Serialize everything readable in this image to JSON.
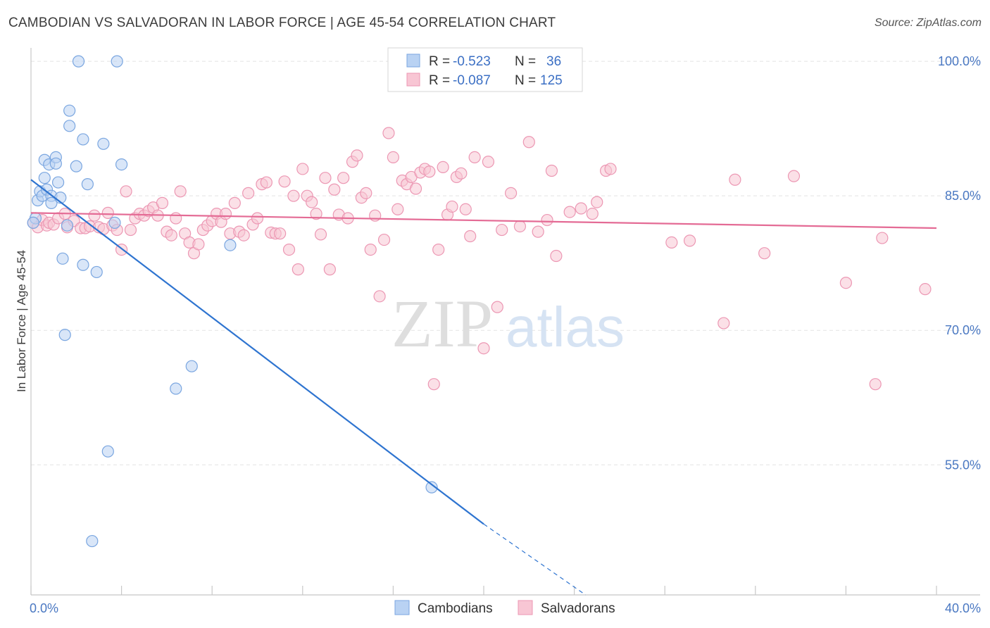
{
  "title": "CAMBODIAN VS SALVADORAN IN LABOR FORCE | AGE 45-54 CORRELATION CHART",
  "source": "Source: ZipAtlas.com",
  "watermark": {
    "zip": "ZIP",
    "atlas": "atlas"
  },
  "colors": {
    "cambodian_fill": "#b9d2f3",
    "cambodian_stroke": "#7aa6e0",
    "cambodian_line": "#2e74d0",
    "salvadoran_fill": "#f8c6d4",
    "salvadoran_stroke": "#ec97b3",
    "salvadoran_line": "#e46b95",
    "grid": "#e3e3e3",
    "axis_text": "#4a78c2"
  },
  "legend": {
    "rows": [
      {
        "r_label": "R =",
        "r_value": "-0.523",
        "n_label": "N =",
        "n_value": "36"
      },
      {
        "r_label": "R =",
        "r_value": "-0.087",
        "n_label": "N =",
        "n_value": "125"
      }
    ]
  },
  "bottom_legend": [
    "Cambodians",
    "Salvadorans"
  ],
  "chart_data": {
    "type": "scatter",
    "ylabel": "In Labor Force | Age 45-54",
    "xlabel": "",
    "xlim": [
      0,
      40
    ],
    "ylim": [
      40.5,
      101.5
    ],
    "x_tick_labels": [
      {
        "value": 0,
        "label": "0.0%"
      },
      {
        "value": 40,
        "label": "40.0%"
      }
    ],
    "y_tick_labels": [
      {
        "value": 100,
        "label": "100.0%"
      },
      {
        "value": 85,
        "label": "85.0%"
      },
      {
        "value": 70,
        "label": "70.0%"
      },
      {
        "value": 55,
        "label": "55.0%"
      }
    ],
    "y_gridlines": [
      100,
      85,
      70,
      55
    ],
    "series": [
      {
        "name": "Cambodians",
        "points": [
          [
            0.2,
            82.5
          ],
          [
            0.3,
            84.5
          ],
          [
            0.4,
            85.5
          ],
          [
            0.5,
            85
          ],
          [
            0.6,
            87
          ],
          [
            0.6,
            89
          ],
          [
            0.7,
            85.7
          ],
          [
            0.8,
            88.5
          ],
          [
            0.9,
            85
          ],
          [
            0.9,
            84.2
          ],
          [
            1.1,
            89.3
          ],
          [
            1.1,
            88.6
          ],
          [
            1.2,
            86.5
          ],
          [
            1.3,
            84.8
          ],
          [
            1.4,
            78
          ],
          [
            1.5,
            69.5
          ],
          [
            1.6,
            81.7
          ],
          [
            1.7,
            94.5
          ],
          [
            1.7,
            92.8
          ],
          [
            2.0,
            88.3
          ],
          [
            2.1,
            100
          ],
          [
            2.3,
            91.3
          ],
          [
            2.3,
            77.3
          ],
          [
            2.5,
            86.3
          ],
          [
            2.7,
            46.5
          ],
          [
            2.9,
            76.5
          ],
          [
            3.2,
            90.8
          ],
          [
            3.4,
            56.5
          ],
          [
            3.7,
            82
          ],
          [
            3.8,
            100
          ],
          [
            4.0,
            88.5
          ],
          [
            6.4,
            63.5
          ],
          [
            7.1,
            66
          ],
          [
            8.8,
            79.5
          ],
          [
            17.7,
            52.5
          ],
          [
            0.1,
            82
          ]
        ],
        "trend": {
          "x0": 0,
          "y0": 86.8,
          "x1": 20,
          "y1": 48.4,
          "dash_to_x": 24.5,
          "dash_to_y": 40.5
        }
      },
      {
        "name": "Salvadorans",
        "points": [
          [
            0.1,
            82
          ],
          [
            0.3,
            81.5
          ],
          [
            0.5,
            82.3
          ],
          [
            0.7,
            81.7
          ],
          [
            0.8,
            82
          ],
          [
            1.0,
            81.8
          ],
          [
            1.2,
            82.5
          ],
          [
            1.5,
            83
          ],
          [
            1.6,
            81.5
          ],
          [
            1.9,
            82.2
          ],
          [
            2.2,
            81.4
          ],
          [
            2.4,
            81.4
          ],
          [
            2.6,
            81.6
          ],
          [
            2.8,
            82.8
          ],
          [
            3.0,
            81.5
          ],
          [
            3.2,
            81.3
          ],
          [
            3.4,
            83.1
          ],
          [
            3.6,
            81.7
          ],
          [
            3.8,
            81.2
          ],
          [
            4.0,
            79
          ],
          [
            4.2,
            85.5
          ],
          [
            4.4,
            81.2
          ],
          [
            4.6,
            82.5
          ],
          [
            4.8,
            83
          ],
          [
            5.0,
            82.8
          ],
          [
            5.2,
            83.3
          ],
          [
            5.4,
            83.7
          ],
          [
            5.6,
            82.8
          ],
          [
            5.8,
            84.2
          ],
          [
            6.0,
            81
          ],
          [
            6.2,
            80.6
          ],
          [
            6.4,
            82.5
          ],
          [
            6.6,
            85.5
          ],
          [
            6.8,
            80.8
          ],
          [
            7.0,
            79.8
          ],
          [
            7.2,
            78.6
          ],
          [
            7.4,
            79.6
          ],
          [
            7.6,
            81.2
          ],
          [
            7.8,
            81.7
          ],
          [
            8.0,
            82.2
          ],
          [
            8.2,
            83
          ],
          [
            8.4,
            82.1
          ],
          [
            8.6,
            83
          ],
          [
            8.8,
            80.8
          ],
          [
            9.0,
            84.2
          ],
          [
            9.2,
            81
          ],
          [
            9.4,
            80.6
          ],
          [
            9.6,
            85.3
          ],
          [
            9.8,
            81.8
          ],
          [
            10.0,
            82.5
          ],
          [
            10.2,
            86.3
          ],
          [
            10.4,
            86.5
          ],
          [
            10.6,
            80.9
          ],
          [
            10.8,
            80.8
          ],
          [
            11.0,
            80.8
          ],
          [
            11.2,
            86.6
          ],
          [
            11.4,
            79
          ],
          [
            11.6,
            85
          ],
          [
            11.8,
            76.8
          ],
          [
            12.0,
            88
          ],
          [
            12.2,
            85
          ],
          [
            12.4,
            84.3
          ],
          [
            12.6,
            83
          ],
          [
            12.8,
            80.7
          ],
          [
            13.0,
            87
          ],
          [
            13.2,
            76.8
          ],
          [
            13.4,
            85.7
          ],
          [
            13.6,
            82.9
          ],
          [
            13.8,
            87
          ],
          [
            14.0,
            82.5
          ],
          [
            14.2,
            88.8
          ],
          [
            14.4,
            89.5
          ],
          [
            14.6,
            84.8
          ],
          [
            14.8,
            85.3
          ],
          [
            15.0,
            79
          ],
          [
            15.2,
            82.8
          ],
          [
            15.4,
            73.8
          ],
          [
            15.6,
            80.1
          ],
          [
            15.8,
            92
          ],
          [
            16.0,
            89.3
          ],
          [
            16.2,
            83.5
          ],
          [
            16.4,
            86.7
          ],
          [
            16.6,
            86.3
          ],
          [
            16.8,
            87.1
          ],
          [
            17.0,
            85.8
          ],
          [
            17.2,
            87.6
          ],
          [
            17.4,
            88
          ],
          [
            17.6,
            87.7
          ],
          [
            17.8,
            64
          ],
          [
            18.0,
            79
          ],
          [
            18.2,
            88.2
          ],
          [
            18.4,
            82.9
          ],
          [
            18.6,
            83.8
          ],
          [
            18.8,
            87.1
          ],
          [
            19.0,
            87.5
          ],
          [
            19.2,
            83.5
          ],
          [
            19.4,
            80.5
          ],
          [
            19.6,
            89.3
          ],
          [
            20.0,
            68
          ],
          [
            20.2,
            88.8
          ],
          [
            20.6,
            72.6
          ],
          [
            20.8,
            81.2
          ],
          [
            21.2,
            85.3
          ],
          [
            21.6,
            81.6
          ],
          [
            22.0,
            91
          ],
          [
            22.4,
            81
          ],
          [
            22.8,
            82.3
          ],
          [
            23.0,
            87.8
          ],
          [
            23.2,
            78.3
          ],
          [
            23.8,
            83.2
          ],
          [
            24.3,
            83.6
          ],
          [
            24.8,
            83
          ],
          [
            25.0,
            84.3
          ],
          [
            25.4,
            87.8
          ],
          [
            25.6,
            88
          ],
          [
            28.3,
            79.8
          ],
          [
            29.1,
            80
          ],
          [
            30.6,
            70.8
          ],
          [
            31.1,
            86.8
          ],
          [
            32.4,
            78.6
          ],
          [
            33.7,
            87.2
          ],
          [
            36.0,
            75.3
          ],
          [
            37.3,
            64
          ],
          [
            37.6,
            80.3
          ],
          [
            39.5,
            74.6
          ]
        ],
        "trend": {
          "x0": 0,
          "y0": 83.1,
          "x1": 40,
          "y1": 81.4
        }
      }
    ]
  }
}
